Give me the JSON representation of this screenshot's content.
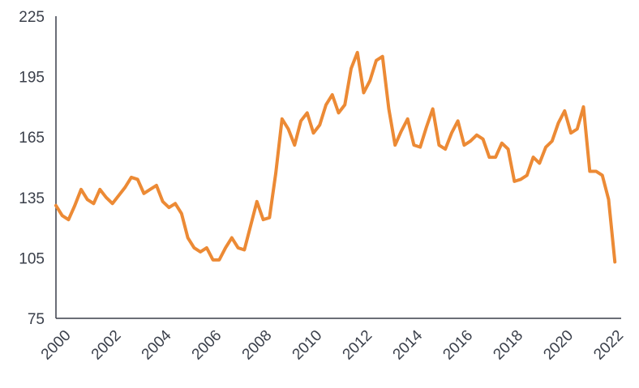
{
  "chart_data": {
    "type": "line",
    "title": "",
    "xlabel": "",
    "ylabel": "",
    "xlim": [
      2000,
      2022.5
    ],
    "ylim": [
      75,
      225
    ],
    "x_ticks": [
      "2000",
      "2002",
      "2004",
      "2006",
      "2008",
      "2010",
      "2012",
      "2014",
      "2016",
      "2018",
      "2020",
      "2022"
    ],
    "y_ticks": [
      "75",
      "105",
      "135",
      "165",
      "195",
      "225"
    ],
    "grid": false,
    "legend": "none",
    "line_color": "#ec8a35",
    "axis_color": "#3a3f4a",
    "series": [
      {
        "x": [
          2000.0,
          2000.25,
          2000.5,
          2000.75,
          2001.0,
          2001.25,
          2001.5,
          2001.75,
          2002.0,
          2002.25,
          2002.5,
          2002.75,
          2003.0,
          2003.25,
          2003.5,
          2003.75,
          2004.0,
          2004.25,
          2004.5,
          2004.75,
          2005.0,
          2005.25,
          2005.5,
          2005.75,
          2006.0,
          2006.25,
          2006.5,
          2006.75,
          2007.0,
          2007.25,
          2007.5,
          2007.75,
          2008.0,
          2008.25,
          2008.5,
          2008.75,
          2009.0,
          2009.25,
          2009.5,
          2009.75,
          2010.0,
          2010.25,
          2010.5,
          2010.75,
          2011.0,
          2011.25,
          2011.5,
          2011.75,
          2012.0,
          2012.25,
          2012.5,
          2012.75,
          2013.0,
          2013.25,
          2013.5,
          2013.75,
          2014.0,
          2014.25,
          2014.5,
          2014.75,
          2015.0,
          2015.25,
          2015.5,
          2015.75,
          2016.0,
          2016.25,
          2016.5,
          2016.75,
          2017.0,
          2017.25,
          2017.5,
          2017.75,
          2018.0,
          2018.25,
          2018.5,
          2018.75,
          2019.0,
          2019.25,
          2019.5,
          2019.75,
          2020.0,
          2020.25,
          2020.5,
          2020.75,
          2021.0,
          2021.25,
          2021.5,
          2021.75,
          2022.0,
          2022.25
        ],
        "values": [
          131,
          126,
          124,
          131,
          139,
          134,
          132,
          139,
          135,
          132,
          136,
          140,
          145,
          144,
          137,
          139,
          141,
          133,
          130,
          132,
          127,
          115,
          110,
          108,
          110,
          104,
          104,
          110,
          115,
          110,
          109,
          121,
          133,
          124,
          125,
          147,
          174,
          169,
          161,
          173,
          177,
          167,
          171,
          181,
          186,
          177,
          181,
          199,
          207,
          187,
          193,
          203,
          205,
          179,
          161,
          168,
          174,
          161,
          160,
          170,
          179,
          161,
          159,
          167,
          173,
          161,
          163,
          166,
          164,
          155,
          155,
          162,
          159,
          143,
          144,
          146,
          155,
          152,
          160,
          163,
          172,
          178,
          167,
          169,
          180,
          148,
          148,
          146,
          134,
          103
        ]
      }
    ]
  }
}
